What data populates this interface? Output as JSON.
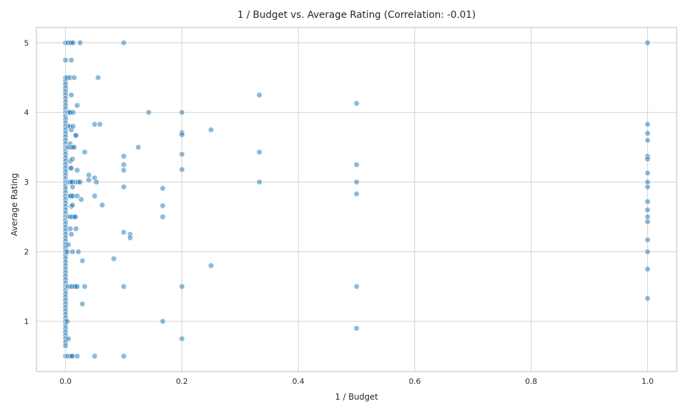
{
  "chart_data": {
    "type": "scatter",
    "title": "1 / Budget vs. Average Rating (Correlation: -0.01)",
    "xlabel": "1 / Budget",
    "ylabel": "Average Rating",
    "xlim": [
      -0.05,
      1.05
    ],
    "ylim": [
      0.28,
      5.22
    ],
    "x_ticks": [
      0.0,
      0.2,
      0.4,
      0.6,
      0.8,
      1.0
    ],
    "x_tick_labels": [
      "0.0",
      "0.2",
      "0.4",
      "0.6",
      "0.8",
      "1.0"
    ],
    "y_ticks": [
      1,
      2,
      3,
      4,
      5
    ],
    "y_tick_labels": [
      "1",
      "2",
      "3",
      "4",
      "5"
    ],
    "grid": true,
    "colors": {
      "point": "#1f77b4",
      "grid": "#cfcfcf",
      "text": "#262626"
    },
    "points": [
      [
        0.0,
        5.0
      ],
      [
        0.0,
        4.75
      ],
      [
        0.0,
        4.5
      ],
      [
        0.0,
        4.45
      ],
      [
        0.0,
        4.4
      ],
      [
        0.0,
        4.35
      ],
      [
        0.0,
        4.3
      ],
      [
        0.0,
        4.25
      ],
      [
        0.0,
        4.2
      ],
      [
        0.0,
        4.15
      ],
      [
        0.0,
        4.1
      ],
      [
        0.0,
        4.05
      ],
      [
        0.0,
        4.0
      ],
      [
        0.0,
        3.95
      ],
      [
        0.0,
        3.9
      ],
      [
        0.0,
        3.85
      ],
      [
        0.0,
        3.8
      ],
      [
        0.0,
        3.75
      ],
      [
        0.0,
        3.7
      ],
      [
        0.0,
        3.65
      ],
      [
        0.0,
        3.6
      ],
      [
        0.0,
        3.55
      ],
      [
        0.0,
        3.5
      ],
      [
        0.0,
        3.45
      ],
      [
        0.0,
        3.4
      ],
      [
        0.0,
        3.35
      ],
      [
        0.0,
        3.3
      ],
      [
        0.0,
        3.25
      ],
      [
        0.0,
        3.2
      ],
      [
        0.0,
        3.15
      ],
      [
        0.0,
        3.1
      ],
      [
        0.0,
        3.05
      ],
      [
        0.0,
        3.0
      ],
      [
        0.0,
        2.95
      ],
      [
        0.0,
        2.9
      ],
      [
        0.0,
        2.85
      ],
      [
        0.0,
        2.8
      ],
      [
        0.0,
        2.75
      ],
      [
        0.0,
        2.7
      ],
      [
        0.0,
        2.65
      ],
      [
        0.0,
        2.6
      ],
      [
        0.0,
        2.55
      ],
      [
        0.0,
        2.5
      ],
      [
        0.0,
        2.45
      ],
      [
        0.0,
        2.4
      ],
      [
        0.0,
        2.35
      ],
      [
        0.0,
        2.3
      ],
      [
        0.0,
        2.25
      ],
      [
        0.0,
        2.2
      ],
      [
        0.0,
        2.15
      ],
      [
        0.0,
        2.1
      ],
      [
        0.0,
        2.05
      ],
      [
        0.0,
        2.0
      ],
      [
        0.0,
        1.95
      ],
      [
        0.0,
        1.9
      ],
      [
        0.0,
        1.85
      ],
      [
        0.0,
        1.8
      ],
      [
        0.0,
        1.75
      ],
      [
        0.0,
        1.7
      ],
      [
        0.0,
        1.65
      ],
      [
        0.0,
        1.6
      ],
      [
        0.0,
        1.55
      ],
      [
        0.0,
        1.5
      ],
      [
        0.0,
        1.45
      ],
      [
        0.0,
        1.4
      ],
      [
        0.0,
        1.35
      ],
      [
        0.0,
        1.3
      ],
      [
        0.0,
        1.25
      ],
      [
        0.0,
        1.2
      ],
      [
        0.0,
        1.15
      ],
      [
        0.0,
        1.1
      ],
      [
        0.0,
        1.05
      ],
      [
        0.0,
        1.0
      ],
      [
        0.0,
        0.95
      ],
      [
        0.0,
        0.9
      ],
      [
        0.0,
        0.85
      ],
      [
        0.0,
        0.8
      ],
      [
        0.0,
        0.75
      ],
      [
        0.0,
        0.7
      ],
      [
        0.0,
        0.65
      ],
      [
        0.0,
        0.5
      ],
      [
        0.003,
        5.0
      ],
      [
        0.003,
        4.5
      ],
      [
        0.003,
        4.0
      ],
      [
        0.003,
        3.5
      ],
      [
        0.003,
        3.0
      ],
      [
        0.003,
        2.5
      ],
      [
        0.003,
        2.0
      ],
      [
        0.003,
        1.5
      ],
      [
        0.003,
        1.0
      ],
      [
        0.003,
        0.5
      ],
      [
        0.005,
        5.0
      ],
      [
        0.005,
        4.0
      ],
      [
        0.005,
        3.8
      ],
      [
        0.005,
        3.5
      ],
      [
        0.005,
        3.0
      ],
      [
        0.005,
        2.8
      ],
      [
        0.005,
        2.5
      ],
      [
        0.005,
        2.1
      ],
      [
        0.005,
        1.5
      ],
      [
        0.005,
        0.75
      ],
      [
        0.005,
        0.5
      ],
      [
        0.007,
        4.0
      ],
      [
        0.007,
        3.5
      ],
      [
        0.007,
        3.0
      ],
      [
        0.007,
        2.8
      ],
      [
        0.007,
        2.5
      ],
      [
        0.008,
        5.0
      ],
      [
        0.008,
        4.5
      ],
      [
        0.008,
        4.0
      ],
      [
        0.008,
        3.8
      ],
      [
        0.008,
        3.55
      ],
      [
        0.008,
        3.3
      ],
      [
        0.008,
        3.2
      ],
      [
        0.008,
        3.0
      ],
      [
        0.008,
        2.8
      ],
      [
        0.008,
        2.5
      ],
      [
        0.008,
        2.33
      ],
      [
        0.008,
        1.5
      ],
      [
        0.008,
        0.5
      ],
      [
        0.01,
        5.0
      ],
      [
        0.01,
        4.75
      ],
      [
        0.01,
        4.25
      ],
      [
        0.01,
        3.75
      ],
      [
        0.01,
        3.5
      ],
      [
        0.01,
        3.2
      ],
      [
        0.01,
        3.0
      ],
      [
        0.01,
        2.8
      ],
      [
        0.01,
        2.65
      ],
      [
        0.01,
        2.5
      ],
      [
        0.01,
        2.25
      ],
      [
        0.01,
        1.5
      ],
      [
        0.01,
        0.5
      ],
      [
        0.012,
        3.5
      ],
      [
        0.012,
        3.33
      ],
      [
        0.012,
        3.0
      ],
      [
        0.012,
        2.93
      ],
      [
        0.012,
        2.67
      ],
      [
        0.012,
        2.5
      ],
      [
        0.012,
        2.0
      ],
      [
        0.012,
        1.5
      ],
      [
        0.012,
        0.5
      ],
      [
        0.013,
        5.0
      ],
      [
        0.013,
        4.0
      ],
      [
        0.013,
        3.8
      ],
      [
        0.013,
        2.8
      ],
      [
        0.015,
        4.5
      ],
      [
        0.015,
        3.5
      ],
      [
        0.015,
        2.5
      ],
      [
        0.015,
        1.5
      ],
      [
        0.017,
        3.67
      ],
      [
        0.017,
        2.5
      ],
      [
        0.017,
        1.5
      ],
      [
        0.018,
        3.67
      ],
      [
        0.018,
        3.0
      ],
      [
        0.018,
        2.33
      ],
      [
        0.02,
        4.1
      ],
      [
        0.02,
        3.17
      ],
      [
        0.02,
        2.8
      ],
      [
        0.02,
        1.5
      ],
      [
        0.02,
        0.5
      ],
      [
        0.022,
        2.0
      ],
      [
        0.022,
        3.0
      ],
      [
        0.025,
        5.0
      ],
      [
        0.025,
        3.0
      ],
      [
        0.027,
        2.75
      ],
      [
        0.029,
        1.87
      ],
      [
        0.029,
        1.25
      ],
      [
        0.033,
        3.43
      ],
      [
        0.033,
        1.5
      ],
      [
        0.04,
        3.1
      ],
      [
        0.04,
        3.03
      ],
      [
        0.05,
        3.83
      ],
      [
        0.05,
        3.06
      ],
      [
        0.05,
        2.8
      ],
      [
        0.05,
        0.5
      ],
      [
        0.053,
        3.0
      ],
      [
        0.056,
        4.5
      ],
      [
        0.059,
        3.83
      ],
      [
        0.063,
        2.67
      ],
      [
        0.083,
        1.9
      ],
      [
        0.1,
        5.0
      ],
      [
        0.1,
        3.37
      ],
      [
        0.1,
        3.25
      ],
      [
        0.1,
        3.17
      ],
      [
        0.1,
        2.93
      ],
      [
        0.1,
        2.28
      ],
      [
        0.1,
        1.5
      ],
      [
        0.1,
        0.5
      ],
      [
        0.111,
        2.25
      ],
      [
        0.111,
        2.2
      ],
      [
        0.125,
        3.5
      ],
      [
        0.143,
        4.0
      ],
      [
        0.167,
        2.91
      ],
      [
        0.167,
        2.66
      ],
      [
        0.167,
        2.5
      ],
      [
        0.167,
        1.0
      ],
      [
        0.2,
        4.0
      ],
      [
        0.2,
        3.71
      ],
      [
        0.2,
        3.68
      ],
      [
        0.2,
        3.4
      ],
      [
        0.2,
        3.18
      ],
      [
        0.2,
        1.5
      ],
      [
        0.2,
        0.75
      ],
      [
        0.25,
        3.75
      ],
      [
        0.25,
        1.8
      ],
      [
        0.333,
        4.25
      ],
      [
        0.333,
        3.43
      ],
      [
        0.333,
        3.0
      ],
      [
        0.5,
        4.13
      ],
      [
        0.5,
        3.25
      ],
      [
        0.5,
        3.0
      ],
      [
        0.5,
        2.83
      ],
      [
        0.5,
        1.5
      ],
      [
        0.5,
        0.9
      ],
      [
        1.0,
        5.0
      ],
      [
        1.0,
        3.83
      ],
      [
        1.0,
        3.7
      ],
      [
        1.0,
        3.6
      ],
      [
        1.0,
        3.37
      ],
      [
        1.0,
        3.33
      ],
      [
        1.0,
        3.13
      ],
      [
        1.0,
        3.0
      ],
      [
        1.0,
        2.93
      ],
      [
        1.0,
        2.72
      ],
      [
        1.0,
        2.6
      ],
      [
        1.0,
        2.5
      ],
      [
        1.0,
        2.43
      ],
      [
        1.0,
        2.17
      ],
      [
        1.0,
        2.0
      ],
      [
        1.0,
        1.75
      ],
      [
        1.0,
        1.33
      ]
    ]
  }
}
